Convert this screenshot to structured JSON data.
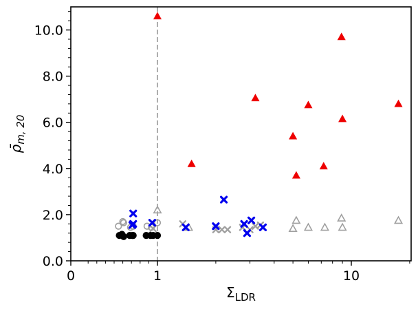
{
  "chart_data": {
    "type": "scatter",
    "xlabel_base": "Σ",
    "xlabel_sub": "LDR",
    "ylabel_main": "ρ̄",
    "ylabel_sub": "m, 20",
    "x_scale": "symlog",
    "xlim": [
      0,
      22
    ],
    "ylim": [
      0,
      11
    ],
    "x_ticks": [
      {
        "value": 0,
        "label": "0"
      },
      {
        "value": 1,
        "label": "1"
      },
      {
        "value": 10,
        "label": "10"
      }
    ],
    "y_ticks": [
      {
        "value": 0,
        "label": "0.0"
      },
      {
        "value": 2,
        "label": "2.0"
      },
      {
        "value": 4,
        "label": "4.0"
      },
      {
        "value": 6,
        "label": "6.0"
      },
      {
        "value": 8,
        "label": "8.0"
      },
      {
        "value": 10,
        "label": "10.0"
      }
    ],
    "reference_line": {
      "x": 1,
      "style": "dashed",
      "color": "#999999"
    },
    "colors": {
      "red": "#ee0000",
      "blue": "#0000ee",
      "black": "#000000",
      "gray": "#a0a0a0"
    },
    "series": [
      {
        "marker": "filled-triangle",
        "color": "red",
        "points": [
          [
            1.0,
            10.6
          ],
          [
            1.5,
            4.2
          ],
          [
            3.2,
            7.05
          ],
          [
            5.0,
            5.4
          ],
          [
            5.2,
            3.7
          ],
          [
            6.0,
            6.75
          ],
          [
            7.2,
            4.1
          ],
          [
            8.9,
            9.7
          ],
          [
            9.0,
            6.15
          ],
          [
            17.5,
            6.8
          ]
        ]
      },
      {
        "marker": "x-cross",
        "color": "blue",
        "points": [
          [
            0.72,
            2.05
          ],
          [
            0.71,
            1.55
          ],
          [
            0.72,
            1.6
          ],
          [
            0.94,
            1.65
          ],
          [
            1.4,
            1.45
          ],
          [
            2.0,
            1.5
          ],
          [
            2.2,
            2.65
          ],
          [
            2.8,
            1.6
          ],
          [
            2.9,
            1.2
          ],
          [
            3.05,
            1.75
          ],
          [
            3.5,
            1.45
          ]
        ]
      },
      {
        "marker": "filled-circle",
        "color": "black",
        "points": [
          [
            0.56,
            1.1
          ],
          [
            0.59,
            1.15
          ],
          [
            0.61,
            1.05
          ],
          [
            0.68,
            1.1
          ],
          [
            0.71,
            1.1
          ],
          [
            0.72,
            1.1
          ],
          [
            0.87,
            1.1
          ],
          [
            0.92,
            1.1
          ],
          [
            0.95,
            1.1
          ],
          [
            1.0,
            1.1
          ]
        ]
      },
      {
        "marker": "open-circle",
        "color": "gray",
        "points": [
          [
            0.55,
            1.5
          ],
          [
            0.6,
            1.7
          ],
          [
            0.61,
            1.65
          ],
          [
            0.69,
            1.45
          ],
          [
            0.72,
            1.5
          ],
          [
            0.88,
            1.5
          ],
          [
            0.93,
            1.45
          ],
          [
            1.0,
            1.65
          ]
        ]
      },
      {
        "marker": "open-triangle",
        "color": "gray",
        "points": [
          [
            1.0,
            2.2
          ],
          [
            5.0,
            1.4
          ],
          [
            5.2,
            1.75
          ],
          [
            6.0,
            1.45
          ],
          [
            7.3,
            1.45
          ],
          [
            8.9,
            1.85
          ],
          [
            9.0,
            1.45
          ],
          [
            17.5,
            1.75
          ],
          [
            1.45,
            1.45
          ]
        ]
      },
      {
        "marker": "open-x",
        "color": "gray",
        "points": [
          [
            0.95,
            1.4
          ],
          [
            1.35,
            1.6
          ],
          [
            2.0,
            1.35
          ],
          [
            2.15,
            1.35
          ],
          [
            2.3,
            1.35
          ],
          [
            2.75,
            1.45
          ],
          [
            3.0,
            1.35
          ],
          [
            3.2,
            1.5
          ],
          [
            3.4,
            1.55
          ]
        ]
      }
    ]
  }
}
